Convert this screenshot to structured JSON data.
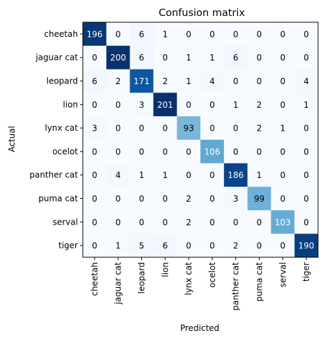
{
  "chart_data": {
    "type": "heatmap",
    "title": "Confusion matrix",
    "xlabel": "Predicted",
    "ylabel": "Actual",
    "colormap": "Blues",
    "grid": false,
    "legend": "none",
    "value_range": [
      0,
      201
    ],
    "x_categories": [
      "cheetah",
      "jaguar cat",
      "leopard",
      "lion",
      "lynx cat",
      "ocelot",
      "panther cat",
      "puma cat",
      "serval",
      "tiger"
    ],
    "y_categories": [
      "cheetah",
      "jaguar cat",
      "leopard",
      "lion",
      "lynx cat",
      "ocelot",
      "panther cat",
      "puma cat",
      "serval",
      "tiger"
    ],
    "matrix": [
      [
        196,
        0,
        6,
        1,
        0,
        0,
        0,
        0,
        0,
        0
      ],
      [
        0,
        200,
        6,
        0,
        1,
        1,
        6,
        0,
        0,
        0
      ],
      [
        6,
        2,
        171,
        2,
        1,
        4,
        0,
        0,
        0,
        4
      ],
      [
        0,
        0,
        3,
        201,
        0,
        0,
        1,
        2,
        0,
        1
      ],
      [
        3,
        0,
        0,
        0,
        93,
        0,
        0,
        2,
        1,
        0
      ],
      [
        0,
        0,
        0,
        0,
        0,
        106,
        0,
        0,
        0,
        0
      ],
      [
        0,
        4,
        1,
        1,
        0,
        0,
        186,
        1,
        0,
        0
      ],
      [
        0,
        0,
        0,
        0,
        2,
        0,
        3,
        99,
        0,
        0
      ],
      [
        0,
        0,
        0,
        0,
        2,
        0,
        0,
        0,
        103,
        0
      ],
      [
        0,
        1,
        5,
        6,
        0,
        0,
        2,
        0,
        0,
        190
      ]
    ]
  }
}
